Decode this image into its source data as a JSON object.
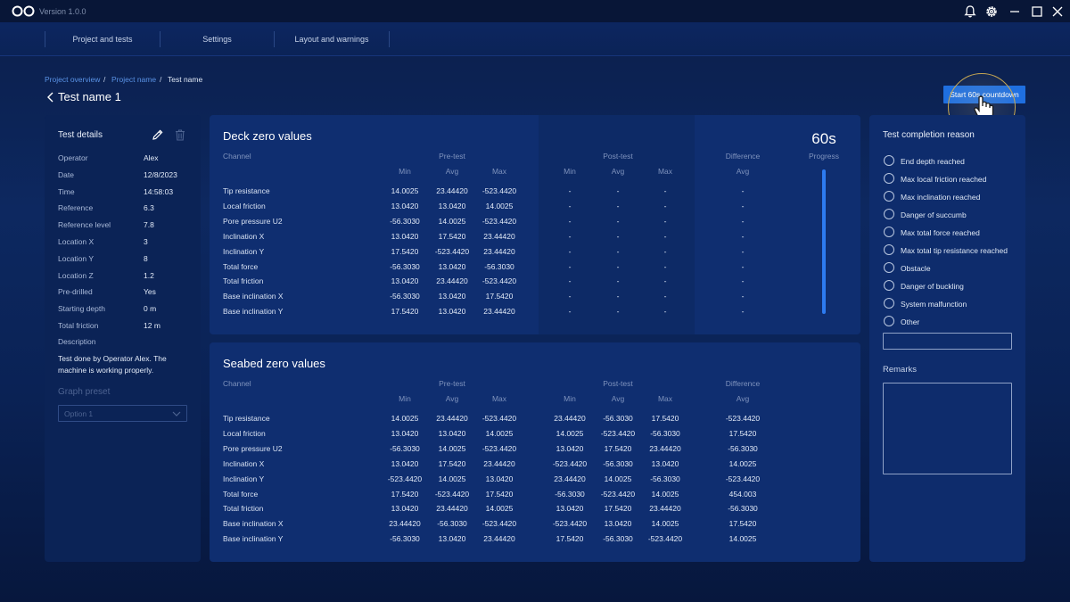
{
  "app": {
    "version": "Version 1.0.0"
  },
  "nav": {
    "tabs": [
      "Project and tests",
      "Settings",
      "Layout and warnings"
    ]
  },
  "breadcrumb": {
    "items": [
      "Project overview",
      "Project name",
      "Test name"
    ]
  },
  "page": {
    "title": "Test name 1",
    "start_button": "Start 60s countdown"
  },
  "details": {
    "title": "Test details",
    "fields": [
      {
        "label": "Operator",
        "value": "Alex"
      },
      {
        "label": "Date",
        "value": "12/8/2023"
      },
      {
        "label": "Time",
        "value": "14:58:03"
      },
      {
        "label": "Reference",
        "value": "6.3"
      },
      {
        "label": "Reference level",
        "value": "7.8"
      },
      {
        "label": "Location X",
        "value": "3"
      },
      {
        "label": "Location Y",
        "value": "8"
      },
      {
        "label": "Location Z",
        "value": "1.2"
      },
      {
        "label": "Pre-drilled",
        "value": "Yes"
      },
      {
        "label": "Starting depth",
        "value": "0 m"
      },
      {
        "label": "Total friction",
        "value": "12 m"
      }
    ],
    "description_label": "Description",
    "description": "Test done by Operator Alex. The machine is working properly.",
    "graph_preset_label": "Graph preset",
    "graph_preset_value": "Option 1"
  },
  "headers": {
    "channel": "Channel",
    "pre": "Pre-test",
    "post": "Post-test",
    "diff": "Difference",
    "min": "Min",
    "avg": "Avg",
    "max": "Max"
  },
  "deck": {
    "title": "Deck zero values",
    "progress_value": "60s",
    "progress_label": "Progress",
    "progress_fraction": 1.0,
    "rows": [
      {
        "channel": "Tip resistance",
        "pre": [
          "14.0025",
          "23.44420",
          "-523.4420"
        ],
        "post": [
          "-",
          "-",
          "-"
        ],
        "diff": "-"
      },
      {
        "channel": "Local friction",
        "pre": [
          "13.0420",
          "13.0420",
          "14.0025"
        ],
        "post": [
          "-",
          "-",
          "-"
        ],
        "diff": "-"
      },
      {
        "channel": "Pore pressure U2",
        "pre": [
          "-56.3030",
          "14.0025",
          "-523.4420"
        ],
        "post": [
          "-",
          "-",
          "-"
        ],
        "diff": "-"
      },
      {
        "channel": "Inclination X",
        "pre": [
          "13.0420",
          "17.5420",
          "23.44420"
        ],
        "post": [
          "-",
          "-",
          "-"
        ],
        "diff": "-"
      },
      {
        "channel": "Inclination Y",
        "pre": [
          "17.5420",
          "-523.4420",
          "23.44420"
        ],
        "post": [
          "-",
          "-",
          "-"
        ],
        "diff": "-"
      },
      {
        "channel": "Total force",
        "pre": [
          "-56.3030",
          "13.0420",
          "-56.3030"
        ],
        "post": [
          "-",
          "-",
          "-"
        ],
        "diff": "-"
      },
      {
        "channel": "Total friction",
        "pre": [
          "13.0420",
          "23.44420",
          "-523.4420"
        ],
        "post": [
          "-",
          "-",
          "-"
        ],
        "diff": "-"
      },
      {
        "channel": "Base inclination X",
        "pre": [
          "-56.3030",
          "13.0420",
          "17.5420"
        ],
        "post": [
          "-",
          "-",
          "-"
        ],
        "diff": "-"
      },
      {
        "channel": "Base inclination Y",
        "pre": [
          "17.5420",
          "13.0420",
          "23.44420"
        ],
        "post": [
          "-",
          "-",
          "-"
        ],
        "diff": "-"
      }
    ]
  },
  "seabed": {
    "title": "Seabed zero values",
    "rows": [
      {
        "channel": "Tip resistance",
        "pre": [
          "14.0025",
          "23.44420",
          "-523.4420"
        ],
        "post": [
          "23.44420",
          "-56.3030",
          "17.5420"
        ],
        "diff": "-523.4420"
      },
      {
        "channel": "Local friction",
        "pre": [
          "13.0420",
          "13.0420",
          "14.0025"
        ],
        "post": [
          "14.0025",
          "-523.4420",
          "-56.3030"
        ],
        "diff": "17.5420"
      },
      {
        "channel": "Pore pressure U2",
        "pre": [
          "-56.3030",
          "14.0025",
          "-523.4420"
        ],
        "post": [
          "13.0420",
          "17.5420",
          "23.44420"
        ],
        "diff": "-56.3030"
      },
      {
        "channel": "Inclination X",
        "pre": [
          "13.0420",
          "17.5420",
          "23.44420"
        ],
        "post": [
          "-523.4420",
          "-56.3030",
          "13.0420"
        ],
        "diff": "14.0025"
      },
      {
        "channel": "Inclination Y",
        "pre": [
          "-523.4420",
          "14.0025",
          "13.0420"
        ],
        "post": [
          "23.44420",
          "14.0025",
          "-56.3030"
        ],
        "diff": "-523.4420"
      },
      {
        "channel": "Total force",
        "pre": [
          "17.5420",
          "-523.4420",
          "17.5420"
        ],
        "post": [
          "-56.3030",
          "-523.4420",
          "14.0025"
        ],
        "diff": "454.003"
      },
      {
        "channel": "Total friction",
        "pre": [
          "13.0420",
          "23.44420",
          "14.0025"
        ],
        "post": [
          "13.0420",
          "17.5420",
          "23.44420"
        ],
        "diff": "-56.3030"
      },
      {
        "channel": "Base inclination X",
        "pre": [
          "23.44420",
          "-56.3030",
          "-523.4420"
        ],
        "post": [
          "-523.4420",
          "13.0420",
          "14.0025"
        ],
        "diff": "17.5420"
      },
      {
        "channel": "Base inclination Y",
        "pre": [
          "-56.3030",
          "13.0420",
          "23.44420"
        ],
        "post": [
          "17.5420",
          "-56.3030",
          "-523.4420"
        ],
        "diff": "14.0025"
      }
    ]
  },
  "completion": {
    "title": "Test completion reason",
    "options": [
      "End depth reached",
      "Max local friction reached",
      "Max inclination reached",
      "Danger of succumb",
      "Max total force reached",
      "Max total tip resistance reached",
      "Obstacle",
      "Danger of buckling",
      "System malfunction",
      "Other"
    ],
    "remarks_label": "Remarks"
  },
  "colors": {
    "accent": "#1f6fe0",
    "progress": "#2d7bf0"
  }
}
